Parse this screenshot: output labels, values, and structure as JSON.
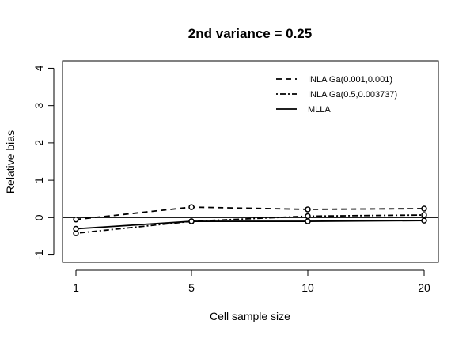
{
  "chart_data": {
    "type": "line",
    "title": "2nd variance = 0.25",
    "xlabel": "Cell sample size",
    "ylabel": "Relative bias",
    "x_ticks": [
      "1",
      "5",
      "10",
      "20"
    ],
    "y_ticks": [
      "-1",
      "0",
      "1",
      "2",
      "3",
      "4"
    ],
    "ylim": [
      -1.2,
      4.2
    ],
    "reference_line": 0,
    "legend_position": "top-right",
    "series": [
      {
        "name": "INLA Ga(0.001,0.001)",
        "line_style": "dashed",
        "points": [
          -0.05,
          0.28,
          0.22,
          0.24
        ]
      },
      {
        "name": "INLA Ga(0.5,0.003737)",
        "line_style": "dot-dash",
        "points": [
          -0.42,
          -0.1,
          0.04,
          0.07
        ]
      },
      {
        "name": "MLLA",
        "line_style": "solid",
        "points": [
          -0.3,
          -0.1,
          -0.1,
          -0.08
        ]
      }
    ]
  }
}
